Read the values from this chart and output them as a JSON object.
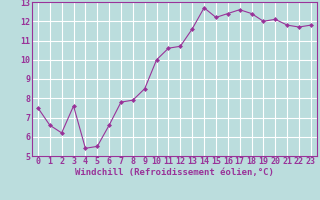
{
  "x": [
    0,
    1,
    2,
    3,
    4,
    5,
    6,
    7,
    8,
    9,
    10,
    11,
    12,
    13,
    14,
    15,
    16,
    17,
    18,
    19,
    20,
    21,
    22,
    23
  ],
  "y": [
    7.5,
    6.6,
    6.2,
    7.6,
    5.4,
    5.5,
    6.6,
    7.8,
    7.9,
    8.5,
    10.0,
    10.6,
    10.7,
    11.6,
    12.7,
    12.2,
    12.4,
    12.6,
    12.4,
    12.0,
    12.1,
    11.8,
    11.7,
    11.8
  ],
  "line_color": "#993399",
  "marker": "D",
  "marker_size": 2,
  "bg_color": "#bbdddd",
  "grid_color": "#ffffff",
  "xlabel": "Windchill (Refroidissement éolien,°C)",
  "xlabel_fontsize": 6.5,
  "ylim": [
    5,
    13
  ],
  "xlim": [
    -0.5,
    23.5
  ],
  "yticks": [
    5,
    6,
    7,
    8,
    9,
    10,
    11,
    12,
    13
  ],
  "xticks": [
    0,
    1,
    2,
    3,
    4,
    5,
    6,
    7,
    8,
    9,
    10,
    11,
    12,
    13,
    14,
    15,
    16,
    17,
    18,
    19,
    20,
    21,
    22,
    23
  ],
  "tick_fontsize": 6,
  "axis_label_color": "#993399",
  "tick_color": "#993399",
  "spine_color": "#993399"
}
